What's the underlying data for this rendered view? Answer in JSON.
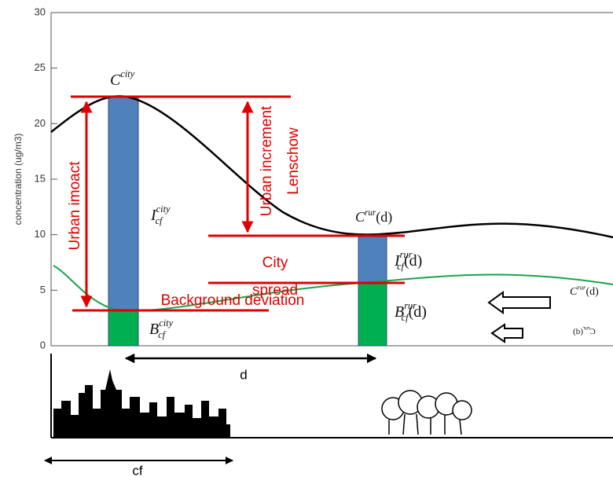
{
  "axis": {
    "label": "concentration (ug/m3)",
    "yticks": [
      0,
      5,
      10,
      15,
      20,
      25,
      30
    ],
    "ylim": [
      0,
      30
    ]
  },
  "labels": {
    "c_city": {
      "base": "C",
      "sup": "city"
    },
    "c_rur": {
      "base": "C",
      "sup": "rur",
      "suffix": "(d)"
    },
    "i_city": {
      "base": "I",
      "sup": "city",
      "sub": "cf"
    },
    "i_rur": {
      "base": "I",
      "sup": "rur",
      "sub": "cf",
      "suffix": "(d)"
    },
    "b_city": {
      "base": "B",
      "sup": "city",
      "sub": "cf"
    },
    "b_rur": {
      "base": "B",
      "sup": "rur",
      "sub": "cf",
      "suffix": "(d)"
    },
    "c_rur_right": {
      "base": "C",
      "sup": "rur",
      "suffix": "(d)"
    },
    "c_rur_mirror": {
      "base": "C",
      "sup": "rur",
      "suffix": "(d)"
    }
  },
  "annotations": {
    "urban_impact": "Urban imoact",
    "urban_increment": "Urban increment",
    "lenschow": "Lenschow",
    "city": "City",
    "spread": "spread",
    "background": "Background deviation",
    "d": "d",
    "cf": "cf"
  }
}
